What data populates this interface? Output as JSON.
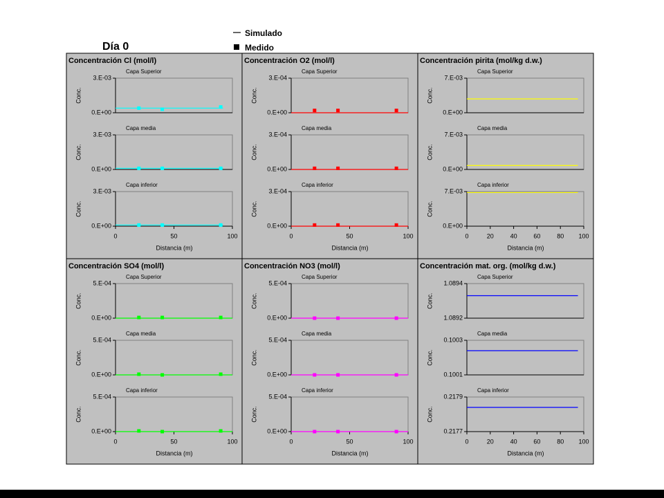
{
  "header": {
    "title": "Día 0"
  },
  "chart_data": [
    {
      "type": "line",
      "title": "Concentración Cl (mol/l)",
      "subtitle": "Capa Superior",
      "ylabel": "Conc.",
      "xlim": [
        0,
        100
      ],
      "ylim": [
        0,
        0.003
      ],
      "yticks": [
        {
          "value": 0,
          "label": "0.E+00"
        },
        {
          "value": 0.003,
          "label": "3.E-03"
        }
      ],
      "color": "#00ffff",
      "series": [
        {
          "name": "Simulado",
          "mode": "line",
          "x": [
            0,
            92
          ],
          "values": [
            0.0004,
            0.0004
          ]
        },
        {
          "name": "Medido",
          "mode": "markers",
          "x": [
            20,
            40,
            90
          ],
          "values": [
            0.0004,
            0.0003,
            0.0005
          ]
        }
      ]
    },
    {
      "type": "line",
      "subtitle": "Capa media",
      "ylabel": "Conc.",
      "xlim": [
        0,
        100
      ],
      "ylim": [
        0,
        0.003
      ],
      "yticks": [
        {
          "value": 0,
          "label": "0.E+00"
        },
        {
          "value": 0.003,
          "label": "3.E-03"
        }
      ],
      "color": "#00ffff",
      "series": [
        {
          "mode": "line",
          "x": [
            0,
            92
          ],
          "values": [
            0.0001,
            0.0001
          ]
        },
        {
          "mode": "markers",
          "x": [
            20,
            40,
            90
          ],
          "values": [
            0.0001,
            0.0001,
            0.0001
          ]
        }
      ]
    },
    {
      "type": "line",
      "subtitle": "Capa inferior",
      "ylabel": "Conc.",
      "xlabel": "Distancia (m)",
      "xlim": [
        0,
        100
      ],
      "xticks": [
        0,
        50,
        100
      ],
      "ylim": [
        0,
        0.003
      ],
      "yticks": [
        {
          "value": 0,
          "label": "0.E+00"
        },
        {
          "value": 0.003,
          "label": "3.E-03"
        }
      ],
      "color": "#00ffff",
      "series": [
        {
          "mode": "line",
          "x": [
            0,
            92
          ],
          "values": [
            0.0001,
            0.0001
          ]
        },
        {
          "mode": "markers",
          "x": [
            20,
            40,
            90
          ],
          "values": [
            0.0001,
            0.0001,
            0.0001
          ]
        }
      ]
    },
    {
      "type": "line",
      "title": "Concentración O2 (mol/l)",
      "subtitle": "Capa Superior",
      "ylabel": "Conc.",
      "xlim": [
        0,
        100
      ],
      "ylim": [
        0,
        0.0003
      ],
      "yticks": [
        {
          "value": 0,
          "label": "0.E+00"
        },
        {
          "value": 0.0003,
          "label": "3.E-04"
        }
      ],
      "color": "#ff0000",
      "series": [
        {
          "mode": "line",
          "x": [
            0,
            100
          ],
          "values": [
            0,
            0
          ]
        },
        {
          "mode": "markers",
          "x": [
            20,
            40,
            90
          ],
          "values": [
            2e-05,
            2e-05,
            2e-05
          ]
        }
      ]
    },
    {
      "type": "line",
      "subtitle": "Capa media",
      "ylabel": "Conc.",
      "xlim": [
        0,
        100
      ],
      "ylim": [
        0,
        0.0003
      ],
      "yticks": [
        {
          "value": 0,
          "label": "0.E+00"
        },
        {
          "value": 0.0003,
          "label": "3.E-04"
        }
      ],
      "color": "#ff0000",
      "series": [
        {
          "mode": "line",
          "x": [
            0,
            100
          ],
          "values": [
            0,
            0
          ]
        },
        {
          "mode": "markers",
          "x": [
            20,
            40,
            90
          ],
          "values": [
            1e-05,
            1e-05,
            1e-05
          ]
        }
      ]
    },
    {
      "type": "line",
      "subtitle": "Capa inferior",
      "ylabel": "Conc.",
      "xlabel": "Distancia (m)",
      "xlim": [
        0,
        100
      ],
      "xticks": [
        0,
        50,
        100
      ],
      "ylim": [
        0,
        0.0003
      ],
      "yticks": [
        {
          "value": 0,
          "label": "0.E+00"
        },
        {
          "value": 0.0003,
          "label": "3.E-04"
        }
      ],
      "color": "#ff0000",
      "series": [
        {
          "mode": "line",
          "x": [
            0,
            100
          ],
          "values": [
            0,
            0
          ]
        },
        {
          "mode": "markers",
          "x": [
            20,
            40,
            90
          ],
          "values": [
            1e-05,
            1e-05,
            1e-05
          ]
        }
      ]
    },
    {
      "type": "line",
      "title": "Concentración pirita (mol/kg d.w.)",
      "subtitle": "Capa Superior",
      "ylabel": "Conc.",
      "xlim": [
        0,
        100
      ],
      "ylim": [
        0,
        0.007
      ],
      "yticks": [
        {
          "value": 0,
          "label": "0.E+00"
        },
        {
          "value": 0.007,
          "label": "7.E-03"
        }
      ],
      "color": "#ffff00",
      "series": [
        {
          "mode": "line",
          "x": [
            0,
            95
          ],
          "values": [
            0.0028,
            0.0028
          ]
        }
      ]
    },
    {
      "type": "line",
      "subtitle": "Capa media",
      "ylabel": "Conc.",
      "xlim": [
        0,
        100
      ],
      "ylim": [
        0,
        0.007
      ],
      "yticks": [
        {
          "value": 0,
          "label": "0.E+00"
        },
        {
          "value": 0.007,
          "label": "7.E-03"
        }
      ],
      "color": "#ffff00",
      "series": [
        {
          "mode": "line",
          "x": [
            0,
            95
          ],
          "values": [
            0.0008,
            0.0008
          ]
        }
      ]
    },
    {
      "type": "line",
      "subtitle": "Capa inferior",
      "ylabel": "Conc.",
      "xlabel": "Distancia (m)",
      "xlim": [
        0,
        100
      ],
      "xticks": [
        0,
        20,
        40,
        60,
        80,
        100
      ],
      "ylim": [
        0,
        0.007
      ],
      "yticks": [
        {
          "value": 0,
          "label": "0.E+00"
        },
        {
          "value": 0.007,
          "label": "7.E-03"
        }
      ],
      "color": "#ffff00",
      "series": [
        {
          "mode": "line",
          "x": [
            0,
            95
          ],
          "values": [
            0.0068,
            0.0068
          ]
        }
      ]
    },
    {
      "type": "line",
      "title": "Concentración SO4 (mol/l)",
      "subtitle": "Capa Superior",
      "ylabel": "Conc.",
      "xlim": [
        0,
        100
      ],
      "ylim": [
        0,
        0.0005
      ],
      "yticks": [
        {
          "value": 0,
          "label": "0.E+00"
        },
        {
          "value": 0.0005,
          "label": "5.E-04"
        }
      ],
      "color": "#00ff00",
      "series": [
        {
          "mode": "line",
          "x": [
            0,
            100
          ],
          "values": [
            0,
            0
          ]
        },
        {
          "mode": "markers",
          "x": [
            20,
            40,
            90
          ],
          "values": [
            1e-05,
            1e-05,
            1e-05
          ]
        }
      ]
    },
    {
      "type": "line",
      "subtitle": "Capa media",
      "ylabel": "Conc.",
      "xlim": [
        0,
        100
      ],
      "ylim": [
        0,
        0.0005
      ],
      "yticks": [
        {
          "value": 0,
          "label": "0.E+00"
        },
        {
          "value": 0.0005,
          "label": "5.E-04"
        }
      ],
      "color": "#00ff00",
      "series": [
        {
          "mode": "line",
          "x": [
            0,
            100
          ],
          "values": [
            0,
            0
          ]
        },
        {
          "mode": "markers",
          "x": [
            20,
            40,
            90
          ],
          "values": [
            1e-05,
            0,
            1e-05
          ]
        }
      ]
    },
    {
      "type": "line",
      "subtitle": "Capa inferior",
      "ylabel": "Conc.",
      "xlabel": "Distancia (m)",
      "xlim": [
        0,
        100
      ],
      "xticks": [
        0,
        50,
        100
      ],
      "ylim": [
        0,
        0.0005
      ],
      "yticks": [
        {
          "value": 0,
          "label": "0.E+00"
        },
        {
          "value": 0.0005,
          "label": "5.E-04"
        }
      ],
      "color": "#00ff00",
      "series": [
        {
          "mode": "line",
          "x": [
            0,
            100
          ],
          "values": [
            0,
            0
          ]
        },
        {
          "mode": "markers",
          "x": [
            20,
            40,
            90
          ],
          "values": [
            1e-05,
            0,
            1e-05
          ]
        }
      ]
    },
    {
      "type": "line",
      "title": "Concentración NO3 (mol/l)",
      "subtitle": "Capa Superior",
      "ylabel": "Conc.",
      "xlim": [
        0,
        100
      ],
      "ylim": [
        0,
        0.0005
      ],
      "yticks": [
        {
          "value": 0,
          "label": "0.E+00"
        },
        {
          "value": 0.0005,
          "label": "5.E-04"
        }
      ],
      "color": "#ff00ff",
      "series": [
        {
          "mode": "line",
          "x": [
            0,
            100
          ],
          "values": [
            0,
            0
          ]
        },
        {
          "mode": "markers",
          "x": [
            20,
            40,
            90
          ],
          "values": [
            0,
            0,
            0
          ]
        }
      ]
    },
    {
      "type": "line",
      "subtitle": "Capa media",
      "ylabel": "Conc.",
      "xlim": [
        0,
        100
      ],
      "ylim": [
        0,
        0.0005
      ],
      "yticks": [
        {
          "value": 0,
          "label": "0.E+00"
        },
        {
          "value": 0.0005,
          "label": "5.E-04"
        }
      ],
      "color": "#ff00ff",
      "series": [
        {
          "mode": "line",
          "x": [
            0,
            100
          ],
          "values": [
            0,
            0
          ]
        },
        {
          "mode": "markers",
          "x": [
            20,
            40,
            90
          ],
          "values": [
            0,
            0,
            0
          ]
        }
      ]
    },
    {
      "type": "line",
      "subtitle": "Capa inferior",
      "ylabel": "Conc.",
      "xlabel": "Distancia (m)",
      "xlim": [
        0,
        100
      ],
      "xticks": [
        0,
        50,
        100
      ],
      "ylim": [
        0,
        0.0005
      ],
      "yticks": [
        {
          "value": 0,
          "label": "0.E+00"
        },
        {
          "value": 0.0005,
          "label": "5.E-04"
        }
      ],
      "color": "#ff00ff",
      "series": [
        {
          "mode": "line",
          "x": [
            0,
            100
          ],
          "values": [
            0,
            0
          ]
        },
        {
          "mode": "markers",
          "x": [
            20,
            40,
            90
          ],
          "values": [
            0,
            0,
            0
          ]
        }
      ]
    },
    {
      "type": "line",
      "title": "Concentración mat. org. (mol/kg d.w.)",
      "subtitle": "Capa Superior",
      "ylabel": "Conc.",
      "xlim": [
        0,
        100
      ],
      "ylim": [
        1.0892,
        1.0894
      ],
      "yticks": [
        1.0892,
        1.0894
      ],
      "color": "#0000ff",
      "series": [
        {
          "mode": "line",
          "x": [
            0,
            95
          ],
          "values": [
            1.08933,
            1.08933
          ]
        }
      ]
    },
    {
      "type": "line",
      "subtitle": "Capa media",
      "ylabel": "Conc.",
      "xlim": [
        0,
        100
      ],
      "ylim": [
        0.1001,
        0.1003
      ],
      "yticks": [
        0.1001,
        0.1003
      ],
      "color": "#0000ff",
      "series": [
        {
          "mode": "line",
          "x": [
            0,
            95
          ],
          "values": [
            0.10024,
            0.10024
          ]
        }
      ]
    },
    {
      "type": "line",
      "subtitle": "Capa inferior",
      "ylabel": "Conc.",
      "xlabel": "Distancia (m)",
      "xlim": [
        0,
        100
      ],
      "xticks": [
        0,
        20,
        40,
        60,
        80,
        100
      ],
      "ylim": [
        0.2177,
        0.2179
      ],
      "yticks": [
        0.2177,
        0.2179
      ],
      "color": "#0000ff",
      "series": [
        {
          "mode": "line",
          "x": [
            0,
            95
          ],
          "values": [
            0.21784,
            0.21784
          ]
        }
      ]
    }
  ]
}
